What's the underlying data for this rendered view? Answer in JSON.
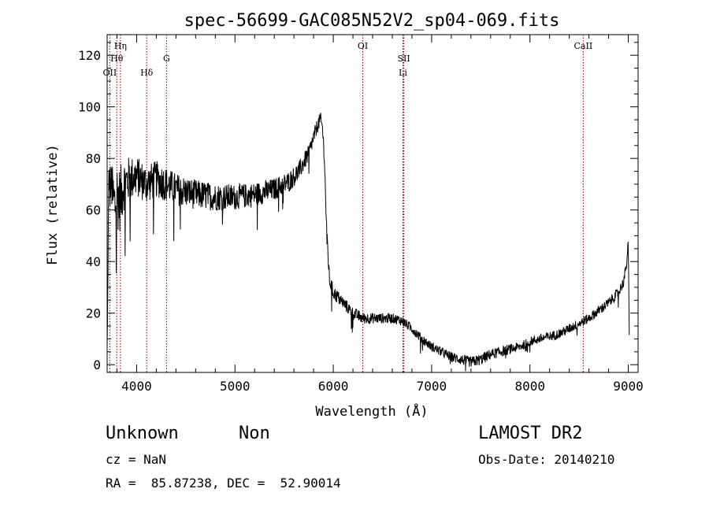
{
  "chart_data": {
    "type": "line",
    "title": "spec-56699-GAC085N52V2_sp04-069.fits",
    "xlabel": "Wavelength (Å)",
    "ylabel": "Flux (relative)",
    "xlim": [
      3700,
      9100
    ],
    "ylim": [
      -3,
      128
    ],
    "x_ticks": [
      4000,
      5000,
      6000,
      7000,
      8000,
      9000
    ],
    "x_tick_labels": [
      "4000",
      "5000",
      "6000",
      "7000",
      "8000",
      "9000"
    ],
    "y_ticks": [
      0,
      20,
      40,
      60,
      80,
      100,
      120
    ],
    "y_tick_labels": [
      "0",
      "20",
      "40",
      "60",
      "80",
      "100",
      "120"
    ],
    "x_minor_step": 200,
    "y_minor_step": 5,
    "grid": false,
    "line_color": "#000000",
    "spectrum_anchors": {
      "x": [
        3700,
        3705,
        3712,
        3720,
        3730,
        3745,
        3760,
        3780,
        3800,
        3830,
        3870,
        3920,
        4000,
        4100,
        4200,
        4400,
        4600,
        4800,
        5000,
        5200,
        5400,
        5550,
        5650,
        5750,
        5800,
        5840,
        5870,
        5890,
        5910,
        5930,
        5960,
        6000,
        6050,
        6100,
        6200,
        6300,
        6400,
        6500,
        6600,
        6700,
        6800,
        6900,
        7000,
        7100,
        7200,
        7300,
        7400,
        7500,
        7600,
        7700,
        7800,
        7900,
        8000,
        8100,
        8200,
        8300,
        8400,
        8500,
        8600,
        8700,
        8800,
        8900,
        8950,
        8980,
        9000,
        9005,
        9010
      ],
      "y": [
        5,
        20,
        55,
        75,
        68,
        70,
        65,
        62,
        66,
        64,
        70,
        72,
        73,
        70,
        72,
        68,
        66,
        65,
        65,
        66,
        68,
        71,
        75,
        82,
        88,
        93,
        95,
        92,
        80,
        55,
        33,
        28,
        26,
        24,
        20,
        18,
        18,
        18,
        18,
        17,
        14,
        10,
        7,
        5,
        3,
        2,
        1,
        2,
        4,
        5,
        6,
        7,
        9,
        10,
        11,
        12,
        14,
        16,
        18,
        21,
        24,
        28,
        32,
        38,
        47,
        30,
        10
      ],
      "noise_amplitude": {
        "x": [
          3700,
          3800,
          3900,
          4000,
          4500,
          5000,
          5600,
          5800,
          5950,
          6100,
          6500,
          7000,
          7500,
          8000,
          9000
        ],
        "amp": [
          6,
          14,
          9,
          8,
          6,
          5,
          4,
          3,
          3,
          2.5,
          2,
          1.8,
          2.2,
          1.8,
          2
        ]
      }
    },
    "line_markers": [
      {
        "label": "Hη",
        "x": 3835,
        "row": 0
      },
      {
        "label": "Hθ",
        "x": 3798,
        "row": 1
      },
      {
        "label": "OII",
        "x": 3727,
        "row": 2
      },
      {
        "label": "G",
        "x": 4304,
        "row": 1
      },
      {
        "label": "Hδ",
        "x": 4102,
        "row": 2
      },
      {
        "label": "OI",
        "x": 6300,
        "row": 0
      },
      {
        "label": "SII",
        "x": 6717,
        "row": 1
      },
      {
        "label": "Li",
        "x": 6708,
        "row": 2
      },
      {
        "label": "CaII",
        "x": 8542,
        "row": 0
      }
    ],
    "marker_color": "#8b0000"
  },
  "info": {
    "class": "Unknown",
    "subclass": "Non",
    "survey": "LAMOST DR2",
    "cz": "cz = NaN",
    "obs_date": "Obs-Date: 20140210",
    "coords": "RA =  85.87238, DEC =  52.90014"
  }
}
